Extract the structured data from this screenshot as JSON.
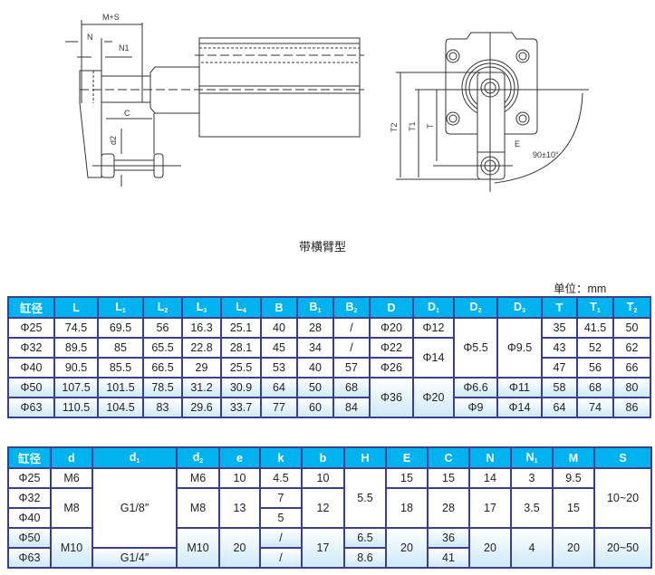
{
  "drawing": {
    "labels": {
      "ms": "M+S",
      "n": "N",
      "n1": "N1",
      "c": "C",
      "d2": "d2",
      "t2": "T2",
      "t1": "T1",
      "t": "T",
      "e": "E",
      "angle": "90±10°"
    }
  },
  "caption": "带横臂型",
  "unit": "单位：mm",
  "colors": {
    "header": "#00b3ee",
    "border": "#3b3f92",
    "row_tint": "#cfeaf8"
  },
  "table1": {
    "headers": [
      [
        "缸径",
        ""
      ],
      [
        "L",
        ""
      ],
      [
        "L",
        "1"
      ],
      [
        "L",
        "2"
      ],
      [
        "L",
        "3"
      ],
      [
        "L",
        "4"
      ],
      [
        "B",
        ""
      ],
      [
        "B",
        "1"
      ],
      [
        "B",
        "2"
      ],
      [
        "D",
        ""
      ],
      [
        "D",
        "1"
      ],
      [
        "D",
        "2"
      ],
      [
        "D",
        "3"
      ],
      [
        "T",
        ""
      ],
      [
        "T",
        "1"
      ],
      [
        "T",
        "2"
      ]
    ],
    "rows": [
      {
        "bore": "Φ25",
        "L": "74.5",
        "L1": "69.5",
        "L2": "56",
        "L3": "16.3",
        "L4": "25.1",
        "B": "40",
        "B1": "28",
        "B2": "/",
        "D": "Φ20",
        "D1": "Φ12",
        "T": "35",
        "T1": "41.5",
        "T2": "50"
      },
      {
        "bore": "Φ32",
        "L": "89.5",
        "L1": "85",
        "L2": "65.5",
        "L3": "22.8",
        "L4": "28.1",
        "B": "45",
        "B1": "34",
        "B2": "/",
        "D": "Φ22",
        "T": "43",
        "T1": "52",
        "T2": "62"
      },
      {
        "bore": "Φ40",
        "L": "90.5",
        "L1": "85.5",
        "L2": "66.5",
        "L3": "29",
        "L4": "25.5",
        "B": "53",
        "B1": "40",
        "B2": "57",
        "D": "Φ26",
        "T": "47",
        "T1": "56",
        "T2": "66"
      },
      {
        "bore": "Φ50",
        "L": "107.5",
        "L1": "101.5",
        "L2": "78.5",
        "L3": "31.2",
        "L4": "30.9",
        "B": "64",
        "B1": "50",
        "B2": "68",
        "D2": "Φ6.6",
        "D3": "Φ11",
        "T": "58",
        "T1": "68",
        "T2": "80"
      },
      {
        "bore": "Φ63",
        "L": "110.5",
        "L1": "104.5",
        "L2": "83",
        "L3": "29.6",
        "L4": "33.7",
        "B": "77",
        "B1": "60",
        "B2": "84",
        "D2": "Φ9",
        "D3": "Φ14",
        "T": "64",
        "T1": "74",
        "T2": "86"
      }
    ],
    "merged": {
      "D1_32_40": "Φ14",
      "D2_25_40": "Φ5.5",
      "D3_25_40": "Φ9.5",
      "D_50_63": "Φ36",
      "D1_50_63": "Φ20"
    }
  },
  "table2": {
    "headers": [
      [
        "缸径",
        ""
      ],
      [
        "d",
        ""
      ],
      [
        "d",
        "1"
      ],
      [
        "d",
        "2"
      ],
      [
        "e",
        ""
      ],
      [
        "k",
        ""
      ],
      [
        "b",
        ""
      ],
      [
        "H",
        ""
      ],
      [
        "E",
        ""
      ],
      [
        "C",
        ""
      ],
      [
        "N",
        ""
      ],
      [
        "N",
        "1"
      ],
      [
        "M",
        ""
      ],
      [
        "S",
        ""
      ]
    ],
    "rows": [
      {
        "bore": "Φ25",
        "d": "M6",
        "d2": "M6",
        "e": "10",
        "k": "4.5",
        "b": "10",
        "E": "15",
        "C": "15",
        "N": "14",
        "N1": "3",
        "M": "9.5"
      },
      {
        "bore": "Φ32",
        "k": "7"
      },
      {
        "bore": "Φ40",
        "k": "5"
      },
      {
        "bore": "Φ50",
        "k": "/",
        "H": "6.5",
        "C": "36"
      },
      {
        "bore": "Φ63",
        "d1": "G1/4″",
        "k": "/",
        "H": "8.6",
        "C": "41"
      }
    ],
    "merged": {
      "d_32_40": "M8",
      "d_50_63": "M10",
      "d1_25_50": "G1/8″",
      "d2_32_40": "M8",
      "d2_50_63": "M10",
      "e_32_40": "13",
      "e_50_63": "20",
      "b_32_40": "12",
      "b_50_63": "17",
      "H_25_40": "5.5",
      "E_32_40": "18",
      "E_50_63": "20",
      "C_32_40": "28",
      "N_32_40": "17",
      "N_50_63": "20",
      "N1_32_40": "3.5",
      "N1_50_63": "4",
      "M_32_40": "15",
      "M_50_63": "20",
      "S_25_40": "10~20",
      "S_50_63": "20~50"
    }
  }
}
